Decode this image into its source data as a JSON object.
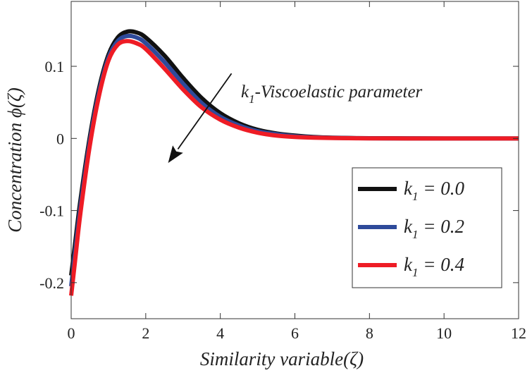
{
  "chart_data": {
    "type": "line",
    "xlabel": "Similarity variable(ζ)",
    "ylabel": "Concentration ϕ(ζ)",
    "xlim": [
      0,
      12
    ],
    "ylim": [
      -0.25,
      0.19
    ],
    "xticks": [
      0,
      2,
      4,
      6,
      8,
      10,
      12
    ],
    "xtick_labels": [
      "0",
      "2",
      "4",
      "6",
      "8",
      "10",
      "12"
    ],
    "yticks": [
      -0.2,
      -0.1,
      0,
      0.1
    ],
    "ytick_labels": [
      "-0.2",
      "-0.1",
      "0",
      "0.1"
    ],
    "grid": false,
    "legend_position": "center-right",
    "annotation": {
      "symbol": "k",
      "subscript": "1",
      "text": "-Viscoelastic parameter",
      "arrow_from": [
        4.3,
        0.09
      ],
      "arrow_to": [
        2.6,
        -0.034
      ]
    },
    "series": [
      {
        "name": "k1 = 0.0",
        "label_symbol": "k",
        "label_subscript": "1",
        "label_value": " = 0.0",
        "color": "#111111",
        "x": [
          0,
          0.1,
          0.25,
          0.5,
          0.75,
          1.0,
          1.25,
          1.5,
          1.75,
          2.0,
          2.5,
          3.0,
          3.5,
          4.0,
          4.5,
          5.0,
          5.5,
          6.0,
          6.5,
          7.0,
          8.0,
          9.0,
          10.0,
          11.0,
          12.0
        ],
        "y": [
          -0.19,
          -0.148,
          -0.085,
          0.002,
          0.07,
          0.116,
          0.14,
          0.148,
          0.147,
          0.14,
          0.115,
          0.084,
          0.056,
          0.035,
          0.021,
          0.012,
          0.007,
          0.004,
          0.002,
          0.001,
          0.0003,
          0.0001,
          0,
          0,
          0
        ]
      },
      {
        "name": "k1 = 0.2",
        "label_symbol": "k",
        "label_subscript": "1",
        "label_value": " = 0.2",
        "color": "#2e4a9a",
        "x": [
          0,
          0.1,
          0.25,
          0.5,
          0.75,
          1.0,
          1.25,
          1.5,
          1.75,
          2.0,
          2.5,
          3.0,
          3.5,
          4.0,
          4.5,
          5.0,
          5.5,
          6.0,
          6.5,
          7.0,
          8.0,
          9.0,
          10.0,
          11.0,
          12.0
        ],
        "y": [
          -0.205,
          -0.16,
          -0.094,
          -0.004,
          0.065,
          0.112,
          0.135,
          0.142,
          0.14,
          0.132,
          0.106,
          0.076,
          0.049,
          0.03,
          0.018,
          0.01,
          0.006,
          0.003,
          0.0015,
          0.0008,
          0.0002,
          0.0001,
          0,
          0,
          0
        ]
      },
      {
        "name": "k1 = 0.4",
        "label_symbol": "k",
        "label_subscript": "1",
        "label_value": " = 0.4",
        "color": "#ee1c25",
        "x": [
          0,
          0.1,
          0.25,
          0.5,
          0.75,
          1.0,
          1.25,
          1.5,
          1.75,
          2.0,
          2.5,
          3.0,
          3.5,
          4.0,
          4.5,
          5.0,
          5.5,
          6.0,
          6.5,
          7.0,
          8.0,
          9.0,
          10.0,
          11.0,
          12.0
        ],
        "y": [
          -0.218,
          -0.172,
          -0.103,
          -0.01,
          0.06,
          0.108,
          0.13,
          0.135,
          0.132,
          0.124,
          0.097,
          0.068,
          0.043,
          0.026,
          0.015,
          0.008,
          0.004,
          0.002,
          0.001,
          0.0005,
          0.0001,
          0,
          0,
          0,
          0
        ]
      }
    ]
  }
}
